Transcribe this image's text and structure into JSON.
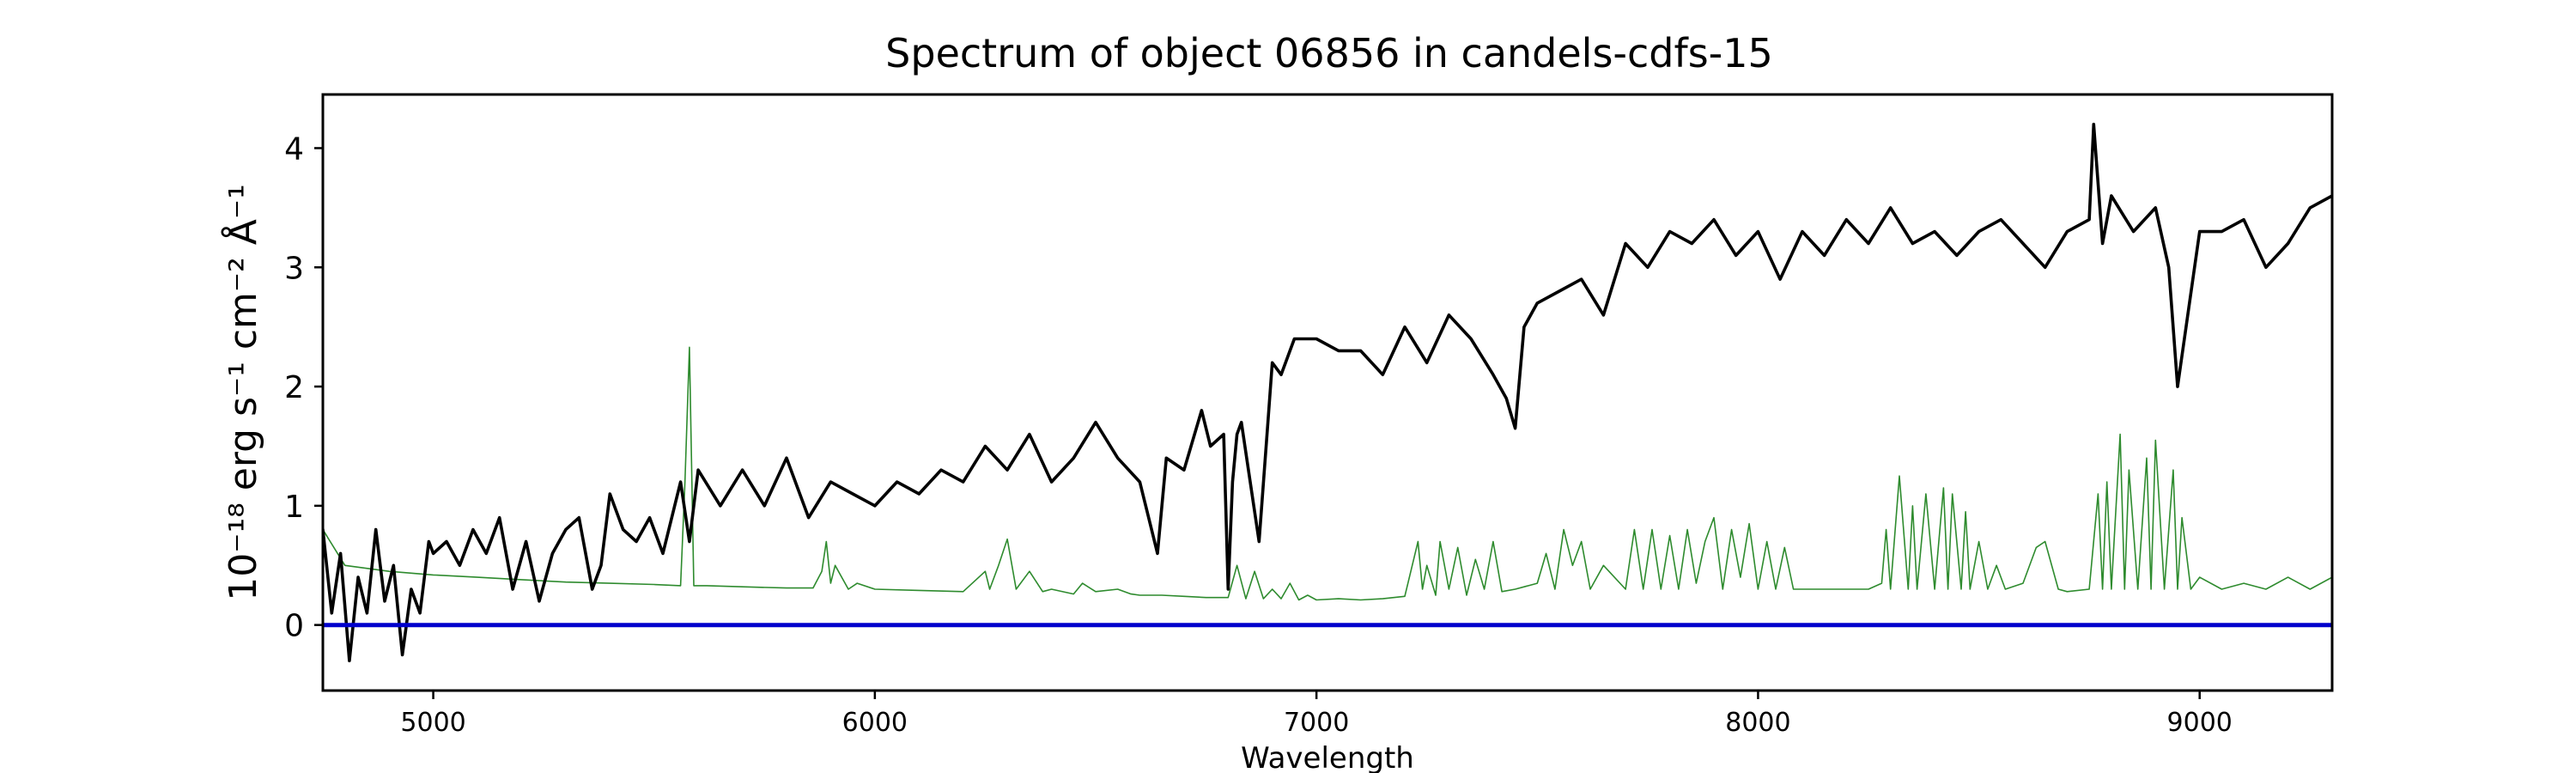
{
  "chart_data": {
    "type": "line",
    "title": "Spectrum of object 06856 in candels-cdfs-15",
    "xlabel": "Wavelength",
    "ylabel": "10⁻¹⁸ erg s⁻¹ cm⁻² Å⁻¹",
    "xlim": [
      4750,
      9300
    ],
    "ylim": [
      -0.55,
      4.45
    ],
    "xticks": [
      5000,
      6000,
      7000,
      8000,
      9000
    ],
    "yticks": [
      0,
      1,
      2,
      3,
      4
    ],
    "grid": false,
    "legend": "none",
    "series": [
      {
        "role": "observed spectrum",
        "color": "#000000",
        "x": [
          4750,
          4770,
          4790,
          4810,
          4830,
          4850,
          4870,
          4890,
          4910,
          4930,
          4950,
          4970,
          4990,
          5000,
          5030,
          5060,
          5090,
          5120,
          5150,
          5180,
          5210,
          5240,
          5270,
          5300,
          5330,
          5360,
          5380,
          5400,
          5430,
          5460,
          5490,
          5520,
          5560,
          5580,
          5600,
          5650,
          5700,
          5750,
          5800,
          5850,
          5900,
          5950,
          6000,
          6050,
          6100,
          6150,
          6200,
          6250,
          6300,
          6350,
          6400,
          6450,
          6500,
          6550,
          6600,
          6620,
          6640,
          6660,
          6700,
          6740,
          6760,
          6790,
          6800,
          6810,
          6820,
          6830,
          6850,
          6870,
          6890,
          6900,
          6920,
          6950,
          7000,
          7050,
          7100,
          7150,
          7200,
          7250,
          7300,
          7350,
          7400,
          7430,
          7450,
          7470,
          7500,
          7550,
          7600,
          7650,
          7700,
          7750,
          7800,
          7850,
          7900,
          7950,
          8000,
          8050,
          8100,
          8150,
          8200,
          8250,
          8300,
          8350,
          8400,
          8450,
          8500,
          8550,
          8600,
          8650,
          8700,
          8750,
          8760,
          8780,
          8800,
          8850,
          8900,
          8930,
          8950,
          9000,
          9050,
          9100,
          9150,
          9200,
          9250,
          9300
        ],
        "y": [
          0.8,
          0.1,
          0.6,
          -0.3,
          0.4,
          0.1,
          0.8,
          0.2,
          0.5,
          -0.25,
          0.3,
          0.1,
          0.7,
          0.6,
          0.7,
          0.5,
          0.8,
          0.6,
          0.9,
          0.3,
          0.7,
          0.2,
          0.6,
          0.8,
          0.9,
          0.3,
          0.5,
          1.1,
          0.8,
          0.7,
          0.9,
          0.6,
          1.2,
          0.7,
          1.3,
          1.0,
          1.3,
          1.0,
          1.4,
          0.9,
          1.2,
          1.1,
          1.0,
          1.2,
          1.1,
          1.3,
          1.2,
          1.5,
          1.3,
          1.6,
          1.2,
          1.4,
          1.7,
          1.4,
          1.2,
          0.9,
          0.6,
          1.4,
          1.3,
          1.8,
          1.5,
          1.6,
          0.3,
          1.2,
          1.6,
          1.7,
          1.2,
          0.7,
          1.7,
          2.2,
          2.1,
          2.4,
          2.4,
          2.3,
          2.3,
          2.1,
          2.5,
          2.2,
          2.6,
          2.4,
          2.1,
          1.9,
          1.65,
          2.5,
          2.7,
          2.8,
          2.9,
          2.6,
          3.2,
          3.0,
          3.3,
          3.2,
          3.4,
          3.1,
          3.3,
          2.9,
          3.3,
          3.1,
          3.4,
          3.2,
          3.5,
          3.2,
          3.3,
          3.1,
          3.3,
          3.4,
          3.2,
          3.0,
          3.3,
          3.4,
          4.2,
          3.2,
          3.6,
          3.3,
          3.5,
          3.0,
          2.0,
          3.3,
          3.3,
          3.4,
          3.0,
          3.2,
          3.5,
          3.6
        ]
      },
      {
        "role": "model / sky",
        "color": "#2e8b2e",
        "x": [
          4750,
          4800,
          4900,
          5000,
          5100,
          5200,
          5300,
          5400,
          5500,
          5560,
          5570,
          5580,
          5590,
          5620,
          5700,
          5800,
          5860,
          5880,
          5890,
          5900,
          5910,
          5940,
          5960,
          6000,
          6100,
          6200,
          6250,
          6260,
          6280,
          6300,
          6320,
          6350,
          6380,
          6400,
          6450,
          6470,
          6500,
          6550,
          6580,
          6600,
          6650,
          6700,
          6750,
          6800,
          6820,
          6840,
          6860,
          6880,
          6900,
          6920,
          6940,
          6960,
          6980,
          7000,
          7050,
          7100,
          7150,
          7200,
          7230,
          7240,
          7250,
          7270,
          7280,
          7300,
          7320,
          7340,
          7360,
          7380,
          7400,
          7420,
          7450,
          7500,
          7520,
          7540,
          7560,
          7580,
          7600,
          7620,
          7650,
          7700,
          7720,
          7740,
          7760,
          7780,
          7800,
          7820,
          7840,
          7860,
          7880,
          7900,
          7920,
          7940,
          7960,
          7980,
          8000,
          8020,
          8040,
          8060,
          8080,
          8100,
          8150,
          8200,
          8250,
          8280,
          8290,
          8300,
          8320,
          8340,
          8350,
          8360,
          8380,
          8400,
          8420,
          8430,
          8440,
          8460,
          8470,
          8480,
          8500,
          8520,
          8540,
          8560,
          8600,
          8630,
          8650,
          8680,
          8700,
          8750,
          8770,
          8780,
          8790,
          8800,
          8820,
          8830,
          8840,
          8860,
          8880,
          8890,
          8900,
          8920,
          8940,
          8950,
          8960,
          8980,
          9000,
          9050,
          9100,
          9150,
          9200,
          9250,
          9300
        ],
        "y": [
          0.8,
          0.5,
          0.45,
          0.42,
          0.4,
          0.38,
          0.36,
          0.35,
          0.34,
          0.33,
          1.2,
          2.33,
          0.33,
          0.33,
          0.32,
          0.31,
          0.31,
          0.45,
          0.7,
          0.35,
          0.5,
          0.3,
          0.35,
          0.3,
          0.29,
          0.28,
          0.45,
          0.3,
          0.5,
          0.72,
          0.3,
          0.45,
          0.28,
          0.3,
          0.26,
          0.35,
          0.28,
          0.3,
          0.26,
          0.25,
          0.25,
          0.24,
          0.23,
          0.23,
          0.5,
          0.22,
          0.45,
          0.22,
          0.3,
          0.22,
          0.35,
          0.21,
          0.25,
          0.21,
          0.22,
          0.21,
          0.22,
          0.24,
          0.7,
          0.3,
          0.5,
          0.25,
          0.7,
          0.3,
          0.65,
          0.25,
          0.55,
          0.3,
          0.7,
          0.28,
          0.3,
          0.35,
          0.6,
          0.3,
          0.8,
          0.5,
          0.7,
          0.3,
          0.5,
          0.3,
          0.8,
          0.3,
          0.8,
          0.3,
          0.75,
          0.3,
          0.8,
          0.35,
          0.7,
          0.9,
          0.3,
          0.8,
          0.4,
          0.85,
          0.3,
          0.7,
          0.3,
          0.65,
          0.3,
          0.3,
          0.3,
          0.3,
          0.3,
          0.35,
          0.8,
          0.3,
          1.25,
          0.3,
          1.0,
          0.3,
          1.1,
          0.3,
          1.15,
          0.3,
          1.1,
          0.3,
          0.95,
          0.3,
          0.7,
          0.3,
          0.5,
          0.3,
          0.35,
          0.65,
          0.7,
          0.3,
          0.28,
          0.3,
          1.1,
          0.3,
          1.2,
          0.3,
          1.6,
          0.3,
          1.3,
          0.3,
          1.4,
          0.3,
          1.55,
          0.3,
          1.3,
          0.3,
          0.9,
          0.3,
          0.4,
          0.3,
          0.35,
          0.3,
          0.4,
          0.3,
          0.4
        ]
      },
      {
        "role": "zero level",
        "color": "#0000cc",
        "x": [
          4750,
          9300
        ],
        "y": [
          0,
          0
        ]
      }
    ]
  }
}
